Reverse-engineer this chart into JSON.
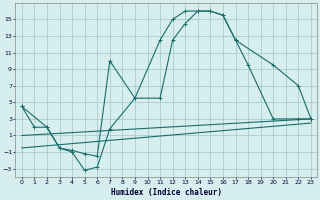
{
  "xlabel": "Humidex (Indice chaleur)",
  "bg_color": "#d6eeee",
  "grid_color": "#aacccc",
  "line_color": "#1a6b6b",
  "xlim": [
    -0.5,
    23.5
  ],
  "ylim": [
    -4,
    17
  ],
  "xticks": [
    0,
    1,
    2,
    3,
    4,
    5,
    6,
    7,
    8,
    9,
    10,
    11,
    12,
    13,
    14,
    15,
    16,
    17,
    18,
    19,
    20,
    21,
    22,
    23
  ],
  "yticks": [
    -3,
    -1,
    1,
    3,
    5,
    7,
    9,
    11,
    13,
    15
  ],
  "line1_x": [
    0,
    1,
    2,
    3,
    4,
    5,
    6,
    7,
    9,
    11,
    12,
    13,
    14,
    15,
    16,
    17,
    18,
    20,
    22,
    23
  ],
  "line1_y": [
    4.5,
    2.0,
    2.0,
    -0.5,
    -0.8,
    -1.2,
    -1.5,
    10.0,
    5.5,
    12.5,
    15.0,
    16.0,
    16.0,
    16.0,
    15.5,
    12.5,
    9.5,
    3.0,
    3.0,
    3.0
  ],
  "line2_x": [
    0,
    2,
    3,
    4,
    5,
    6,
    7,
    9,
    11,
    12,
    13,
    14,
    15,
    16,
    17,
    20,
    22,
    23
  ],
  "line2_y": [
    4.5,
    2.0,
    -0.5,
    -1.0,
    -3.2,
    -2.8,
    1.8,
    5.5,
    5.5,
    12.5,
    14.5,
    16.0,
    16.0,
    15.5,
    12.5,
    9.5,
    7.0,
    3.0
  ],
  "line3_x": [
    0,
    23
  ],
  "line3_y": [
    1.0,
    3.0
  ],
  "line4_x": [
    0,
    23
  ],
  "line4_y": [
    -0.5,
    2.5
  ]
}
